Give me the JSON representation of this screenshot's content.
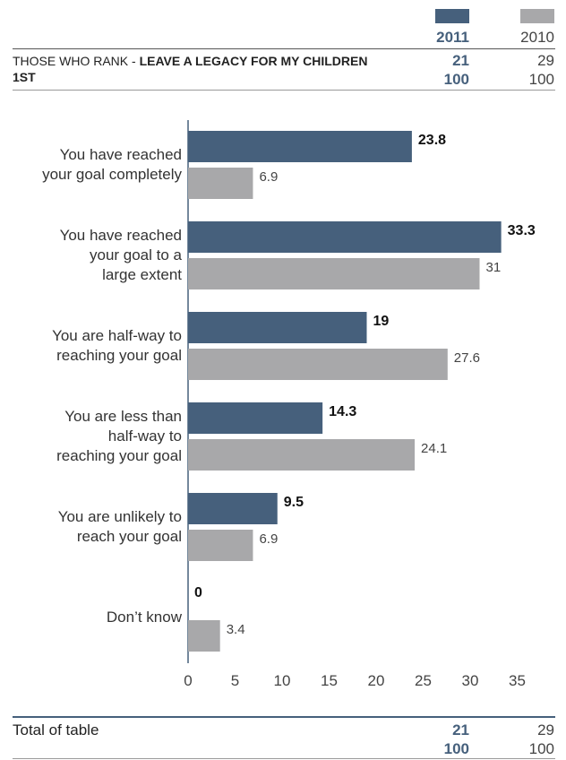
{
  "colors": {
    "y2011": "#46607c",
    "y2010": "#a8a8aa"
  },
  "header": {
    "year_2011": "2011",
    "year_2010": "2010",
    "rank_label_prefix": "THOSE WHO RANK -",
    "rank_label_bold": "LEAVE A LEGACY FOR MY CHILDREN 1ST",
    "rank_2011": "21",
    "rank_2010": "29",
    "base_2011": "100",
    "base_2010": "100"
  },
  "footer": {
    "total_label": "Total of table",
    "total_2011": "21",
    "total_2010": "29",
    "base_2011": "100",
    "base_2010": "100"
  },
  "chart_data": {
    "type": "bar",
    "orientation": "horizontal",
    "categories": [
      [
        "You have reached",
        "your goal completely"
      ],
      [
        "You have reached",
        "your goal to a",
        "large extent"
      ],
      [
        "You are half-way to",
        "reaching your goal"
      ],
      [
        "You are less than",
        "half-way to",
        "reaching your goal"
      ],
      [
        "You are unlikely to",
        "reach your goal"
      ],
      [
        "Don’t know"
      ]
    ],
    "series": [
      {
        "name": "2011",
        "values": [
          23.8,
          33.3,
          19,
          14.3,
          9.5,
          0
        ],
        "labels": [
          "23.8",
          "33.3",
          "19",
          "14.3",
          "9.5",
          "0"
        ]
      },
      {
        "name": "2010",
        "values": [
          6.9,
          31,
          27.6,
          24.1,
          6.9,
          3.4
        ],
        "labels": [
          "6.9",
          "31",
          "27.6",
          "24.1",
          "6.9",
          "3.4"
        ]
      }
    ],
    "xlim": [
      0,
      35
    ],
    "xticks": [
      "0",
      "5",
      "10",
      "15",
      "20",
      "25",
      "30",
      "35"
    ],
    "grid": false
  }
}
